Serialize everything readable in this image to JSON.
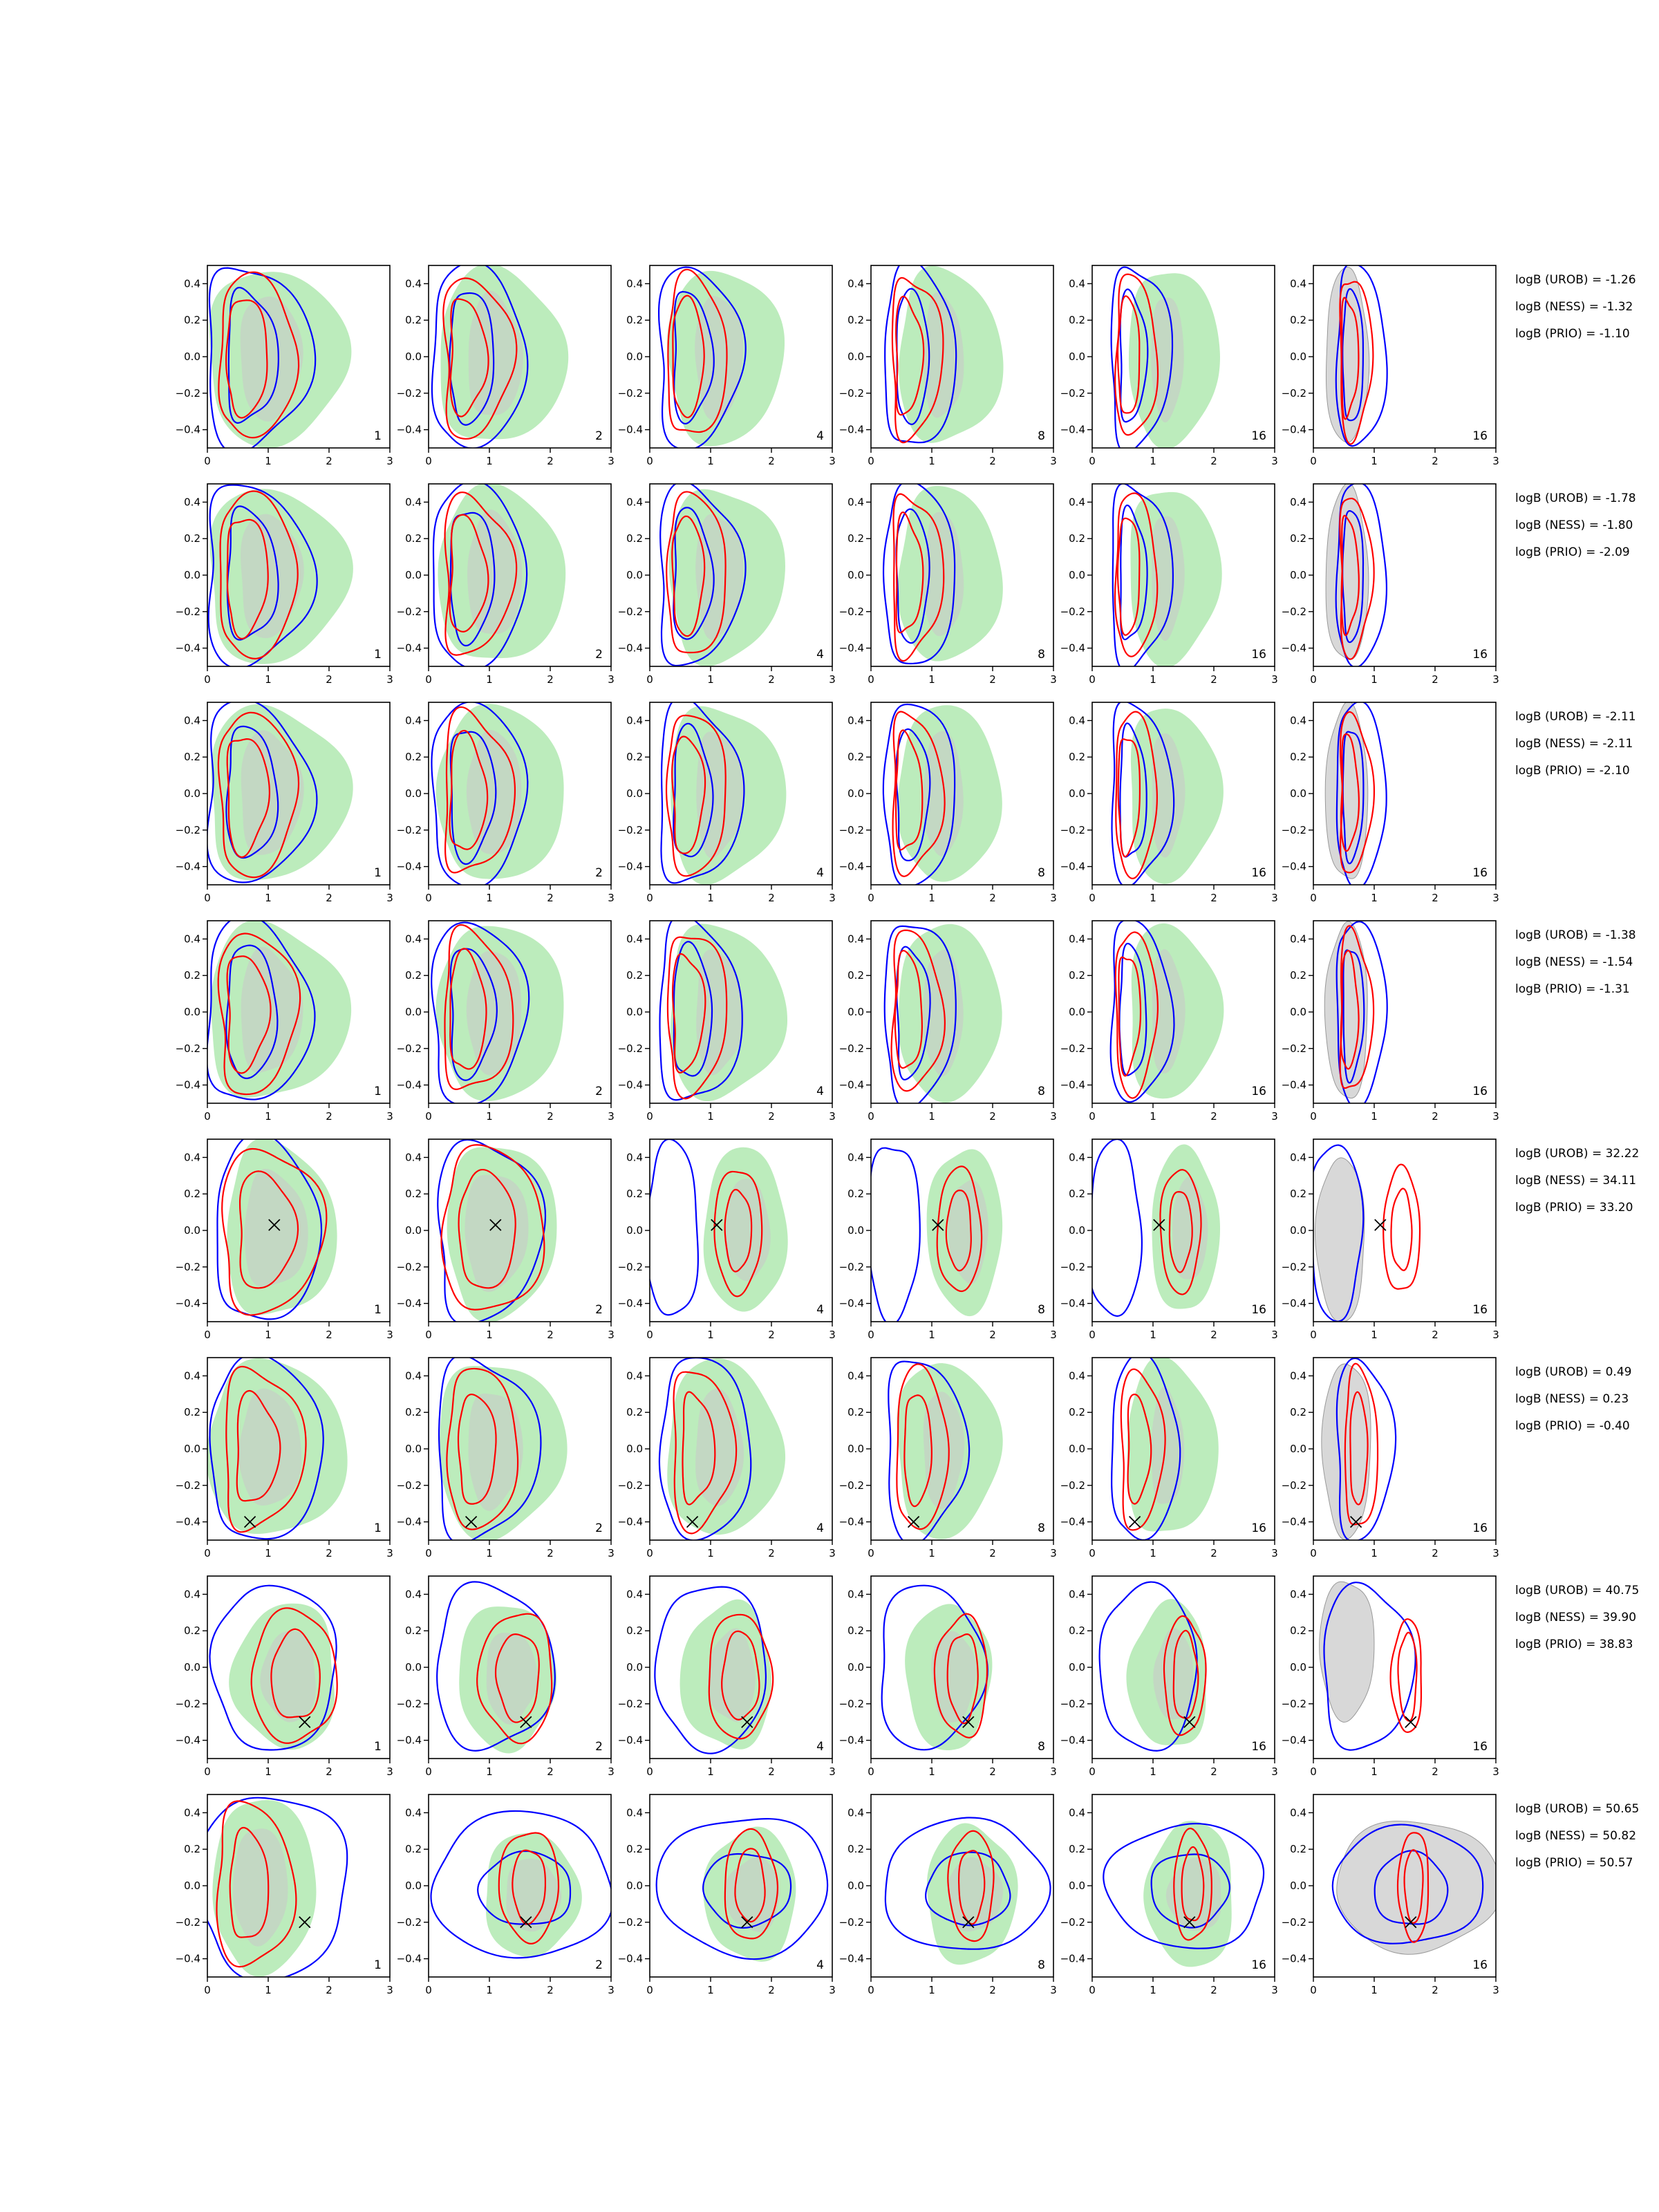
{
  "chart_data": {
    "type": "contour",
    "layout": {
      "rows": 8,
      "cols": 6
    },
    "xlim": [
      0,
      3
    ],
    "ylim": [
      -0.5,
      0.5
    ],
    "x_ticks": [
      0,
      1,
      2,
      3
    ],
    "y_ticks": [
      -0.4,
      -0.2,
      0.0,
      0.2,
      0.4
    ],
    "x_tick_labels": [
      "0",
      "1",
      "2",
      "3"
    ],
    "y_tick_labels": [
      "−0.4",
      "−0.2",
      "0.0",
      "0.2",
      "0.4"
    ],
    "panel_labels": [
      "1",
      "2",
      "4",
      "8",
      "16",
      "16"
    ],
    "colors": {
      "blue_contour": "#0000ff",
      "red_contour": "#ff0000",
      "green_fill": "#90e090",
      "green_fill_inner": "#c8c8c8",
      "gray_fill": "#d8d8d8",
      "marker": "#000000"
    },
    "rows": [
      {
        "marker": null,
        "logB": [
          "logB (UROB) = -1.26",
          "logB (NESS) = -1.32",
          "logB (PRIO) = -1.10"
        ]
      },
      {
        "marker": null,
        "logB": [
          "logB (UROB) = -1.78",
          "logB (NESS) = -1.80",
          "logB (PRIO) = -2.09"
        ]
      },
      {
        "marker": null,
        "logB": [
          "logB (UROB) = -2.11",
          "logB (NESS) = -2.11",
          "logB (PRIO) = -2.10"
        ]
      },
      {
        "marker": null,
        "logB": [
          "logB (UROB) = -1.38",
          "logB (NESS) = -1.54",
          "logB (PRIO) = -1.31"
        ]
      },
      {
        "marker": [
          1.1,
          0.03
        ],
        "logB": [
          "logB (UROB) = 32.22",
          "logB (NESS) = 34.11",
          "logB (PRIO) = 33.20"
        ]
      },
      {
        "marker": [
          0.7,
          -0.4
        ],
        "logB": [
          "logB (UROB) = 0.49",
          "logB (NESS) = 0.23",
          "logB (PRIO) = -0.40"
        ]
      },
      {
        "marker": [
          1.6,
          -0.3
        ],
        "logB": [
          "logB (UROB) = 40.75",
          "logB (NESS) = 39.90",
          "logB (PRIO) = 38.83"
        ]
      },
      {
        "marker": [
          1.6,
          -0.2
        ],
        "logB": [
          "logB (UROB) = 50.65",
          "logB (NESS) = 50.82",
          "logB (PRIO) = 50.57"
        ]
      }
    ]
  }
}
